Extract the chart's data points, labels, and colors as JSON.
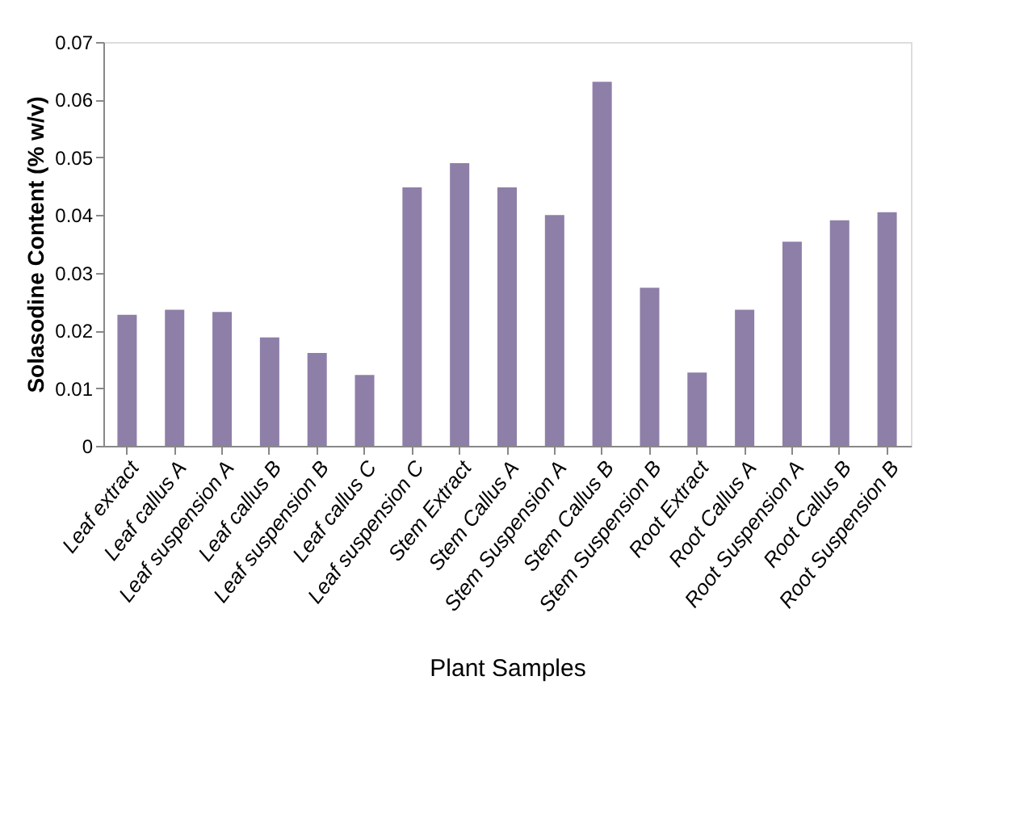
{
  "chart_data": {
    "type": "bar",
    "xlabel": "Plant Samples",
    "ylabel": "Solasodine Content (% w/v)",
    "categories": [
      "Leaf extract",
      "Leaf callus A",
      "Leaf  suspension A",
      "Leaf callus B",
      "Leaf suspension  B",
      "Leaf callus C",
      "Leaf suspension C",
      "Stem Extract",
      "Stem Callus A",
      "Stem Suspension A",
      "Stem Callus B",
      "Stem Suspension B",
      "Root Extract",
      "Root Callus A",
      "Root Suspension A",
      "Root Callus B",
      "Root Suspension B"
    ],
    "values": [
      0.0227,
      0.0236,
      0.0232,
      0.0188,
      0.0161,
      0.0123,
      0.0448,
      0.049,
      0.0448,
      0.04,
      0.0631,
      0.0274,
      0.0127,
      0.0236,
      0.0354,
      0.0391,
      0.0405
    ],
    "color": "#8e7fa8",
    "ylim": [
      0,
      0.07
    ],
    "yticks": [
      0,
      0.01,
      0.02,
      0.03,
      0.04,
      0.05,
      0.06,
      0.07
    ],
    "grid": false
  }
}
